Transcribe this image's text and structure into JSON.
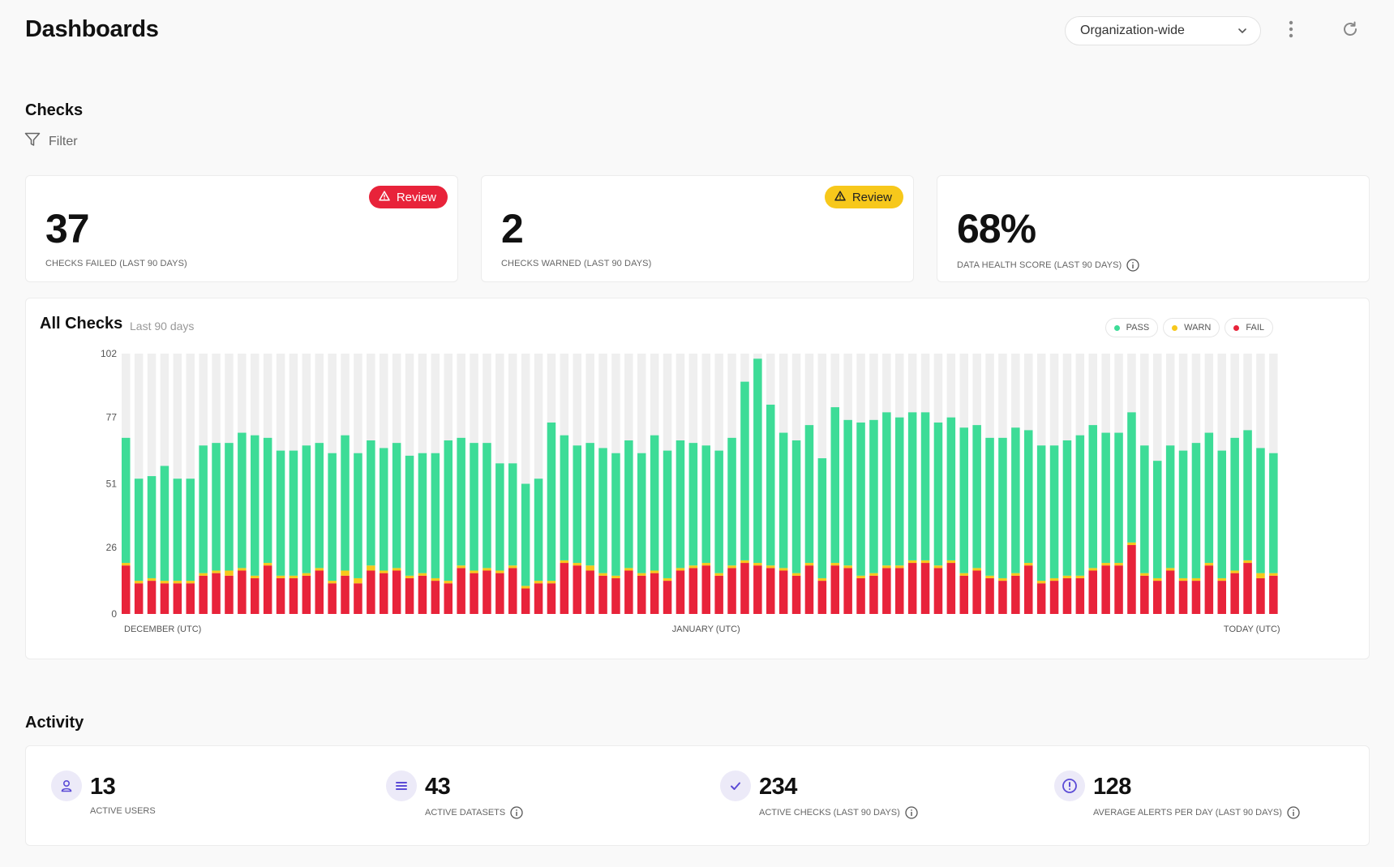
{
  "header": {
    "title": "Dashboards",
    "scope_select": "Organization-wide"
  },
  "checks": {
    "section_title": "Checks",
    "filter_label": "Filter",
    "kpis": [
      {
        "value": "37",
        "caption": "CHECKS FAILED (LAST 90 DAYS)",
        "badge": "Review",
        "badge_color": "#e8233a"
      },
      {
        "value": "2",
        "caption": "CHECKS WARNED (LAST 90 DAYS)",
        "badge": "Review",
        "badge_color": "#f7c81b"
      },
      {
        "value": "68%",
        "caption": "DATA HEALTH SCORE (LAST 90 DAYS)"
      }
    ]
  },
  "all_checks": {
    "title": "All Checks",
    "subtitle": "Last 90 days",
    "legend": [
      "PASS",
      "WARN",
      "FAIL"
    ]
  },
  "colors": {
    "pass": "#3ddc97",
    "warn": "#f7c81b",
    "fail": "#e8233a",
    "track": "#efefef",
    "accent": "#5b4bd6"
  },
  "chart_data": {
    "type": "bar",
    "stacked": true,
    "title": "All Checks",
    "subtitle": "Last 90 days",
    "y_ticks": [
      0,
      26,
      51,
      77,
      102
    ],
    "ylim": [
      0,
      102
    ],
    "x_labels": [
      "DECEMBER (UTC)",
      "JANUARY (UTC)",
      "TODAY (UTC)"
    ],
    "x_label_positions": [
      0,
      45,
      89
    ],
    "series": [
      {
        "name": "PASS",
        "values": [
          49,
          40,
          40,
          45,
          40,
          40,
          50,
          50,
          50,
          53,
          55,
          49,
          49,
          49,
          50,
          49,
          50,
          53,
          49,
          49,
          48,
          49,
          47,
          47,
          49,
          55,
          50,
          50,
          49,
          42,
          40,
          40,
          40,
          62,
          49,
          46,
          48,
          49,
          48,
          50,
          47,
          53,
          50,
          50,
          48,
          46,
          48,
          50,
          70,
          80,
          63,
          53,
          52,
          54,
          47,
          61,
          57,
          60,
          60,
          60,
          58,
          58,
          58,
          56,
          56,
          57,
          56,
          54,
          55,
          57,
          52,
          53,
          52,
          53,
          55,
          56,
          51,
          51,
          51,
          50,
          46,
          48,
          50,
          53,
          51,
          50,
          52,
          51,
          49,
          47
        ],
        "fail": [
          19,
          12,
          13,
          12,
          12,
          12,
          15,
          16,
          15,
          17,
          14,
          19,
          14,
          14,
          15,
          17,
          12,
          15,
          12,
          17,
          16,
          17,
          14,
          15,
          13,
          12,
          18,
          16,
          17,
          16,
          18,
          10,
          12,
          12,
          20,
          19,
          17,
          15,
          14,
          17,
          15,
          16,
          13,
          17,
          18,
          19,
          15,
          18,
          20,
          19,
          18,
          17,
          15,
          19,
          13,
          19,
          18,
          14,
          15,
          18,
          18,
          20,
          20,
          18,
          20,
          15,
          17,
          14,
          13,
          15,
          19,
          12,
          13,
          14,
          14,
          17,
          19,
          19,
          27,
          15,
          13,
          17,
          13,
          13,
          19,
          13,
          16,
          20,
          14,
          15
        ],
        "warn": [
          1,
          1,
          1,
          1,
          1,
          1,
          1,
          1,
          2,
          1,
          1,
          1,
          1,
          1,
          1,
          1,
          1,
          2,
          2,
          2,
          1,
          1,
          1,
          1,
          1,
          1,
          1,
          1,
          1,
          1,
          1,
          1,
          1,
          1,
          1,
          1,
          2,
          1,
          1,
          1,
          1,
          1,
          1,
          1,
          1,
          1,
          1,
          1,
          1,
          1,
          1,
          1,
          1,
          1,
          1,
          1,
          1,
          1,
          1,
          1,
          1,
          1,
          1,
          1,
          1,
          1,
          1,
          1,
          1,
          1,
          1,
          1,
          1,
          1,
          1,
          1,
          1,
          1,
          1,
          1,
          1,
          1,
          1,
          1,
          1,
          1,
          1,
          1,
          2,
          1
        ]
      }
    ],
    "totals_note": "PASS+WARN+FAIL per day"
  },
  "activity": {
    "section_title": "Activity",
    "stats": [
      {
        "value": "13",
        "caption": "ACTIVE USERS",
        "icon": "user-icon"
      },
      {
        "value": "43",
        "caption": "ACTIVE DATASETS",
        "icon": "list-icon"
      },
      {
        "value": "234",
        "caption": "ACTIVE CHECKS (LAST 90 DAYS)",
        "icon": "check-icon"
      },
      {
        "value": "128",
        "caption": "AVERAGE ALERTS PER DAY (LAST 90 DAYS)",
        "icon": "alert-icon"
      }
    ]
  }
}
